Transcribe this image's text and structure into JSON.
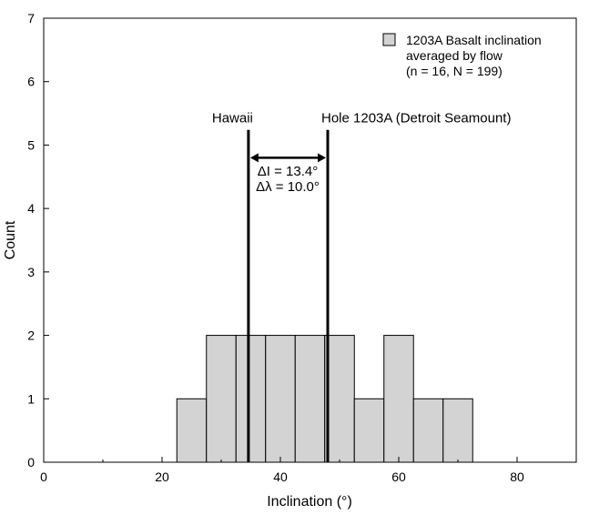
{
  "chart_data": {
    "type": "bar",
    "xlabel": "Inclination (°)",
    "ylabel": "Count",
    "xlim": [
      0,
      90
    ],
    "ylim": [
      0,
      7
    ],
    "xticks": [
      0,
      20,
      40,
      60,
      80
    ],
    "xticks_minor": [
      10,
      30,
      50,
      70,
      90
    ],
    "yticks": [
      0,
      1,
      2,
      3,
      4,
      5,
      6,
      7
    ],
    "bins": [
      {
        "start": 22.5,
        "end": 27.5,
        "count": 1
      },
      {
        "start": 27.5,
        "end": 32.5,
        "count": 2
      },
      {
        "start": 32.5,
        "end": 37.5,
        "count": 2
      },
      {
        "start": 37.5,
        "end": 42.5,
        "count": 2
      },
      {
        "start": 42.5,
        "end": 47.5,
        "count": 2
      },
      {
        "start": 47.5,
        "end": 52.5,
        "count": 2
      },
      {
        "start": 52.5,
        "end": 57.5,
        "count": 1
      },
      {
        "start": 57.5,
        "end": 62.5,
        "count": 2
      },
      {
        "start": 62.5,
        "end": 67.5,
        "count": 1
      },
      {
        "start": 67.5,
        "end": 72.5,
        "count": 1
      }
    ],
    "reference_lines": [
      {
        "label": "Hawaii",
        "x": 34.6
      },
      {
        "label": "Hole 1203A (Detroit Seamount)",
        "x": 48.0
      }
    ],
    "delta_annotation": [
      "ΔI = 13.4°",
      "Δλ = 10.0°"
    ],
    "legend": {
      "placement": "top-right",
      "lines": [
        "1203A Basalt inclination",
        "averaged by flow",
        "(n = 16, N = 199)"
      ]
    },
    "colors": {
      "bar_fill": "#d3d3d3",
      "bar_stroke": "#000000",
      "line": "#000000"
    }
  }
}
